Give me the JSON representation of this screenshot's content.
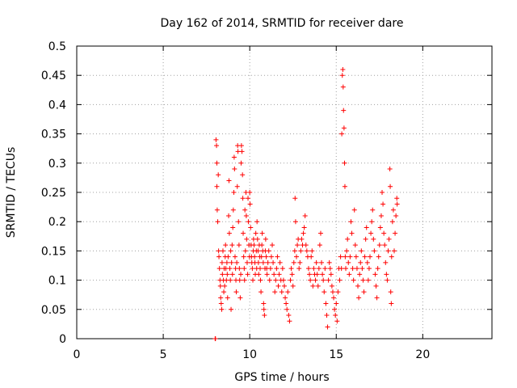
{
  "chart_data": {
    "type": "scatter",
    "title": "Day 162 of 2014, SRMTID for receiver dare",
    "xlabel": "GPS time / hours",
    "ylabel": "SRMTID / TECUs",
    "xlim": [
      0,
      24
    ],
    "ylim": [
      0,
      0.5
    ],
    "xticks": [
      0,
      5,
      10,
      15,
      20
    ],
    "xtick_labels": [
      "0",
      "5",
      "10",
      "15",
      "20"
    ],
    "yticks": [
      0,
      0.05,
      0.1,
      0.15,
      0.2,
      0.25,
      0.3,
      0.35,
      0.4,
      0.45,
      0.5
    ],
    "ytick_labels": [
      "0",
      "0.05",
      "0.1",
      "0.15",
      "0.2",
      "0.25",
      "0.3",
      "0.35",
      "0.4",
      "0.45",
      "0.5"
    ],
    "grid": true,
    "marker": "plus",
    "color": "#ff0000",
    "series": [
      {
        "name": "SRMTID",
        "points": [
          [
            8.0,
            0.0
          ],
          [
            8.02,
            0.0
          ],
          [
            8.05,
            0.34
          ],
          [
            8.08,
            0.33
          ],
          [
            8.1,
            0.3
          ],
          [
            8.1,
            0.26
          ],
          [
            8.12,
            0.22
          ],
          [
            8.15,
            0.2
          ],
          [
            8.18,
            0.28
          ],
          [
            8.2,
            0.15
          ],
          [
            8.22,
            0.14
          ],
          [
            8.25,
            0.12
          ],
          [
            8.28,
            0.1
          ],
          [
            8.3,
            0.09
          ],
          [
            8.32,
            0.07
          ],
          [
            8.35,
            0.06
          ],
          [
            8.38,
            0.05
          ],
          [
            8.4,
            0.13
          ],
          [
            8.42,
            0.11
          ],
          [
            8.45,
            0.15
          ],
          [
            8.48,
            0.1
          ],
          [
            8.5,
            0.08
          ],
          [
            8.52,
            0.12
          ],
          [
            8.55,
            0.09
          ],
          [
            8.58,
            0.14
          ],
          [
            8.6,
            0.16
          ],
          [
            8.62,
            0.12
          ],
          [
            8.65,
            0.1
          ],
          [
            8.68,
            0.13
          ],
          [
            8.7,
            0.11
          ],
          [
            8.72,
            0.07
          ],
          [
            8.75,
            0.14
          ],
          [
            8.78,
            0.21
          ],
          [
            8.8,
            0.27
          ],
          [
            8.82,
            0.18
          ],
          [
            8.85,
            0.12
          ],
          [
            8.88,
            0.1
          ],
          [
            8.9,
            0.15
          ],
          [
            8.92,
            0.05
          ],
          [
            8.95,
            0.13
          ],
          [
            8.98,
            0.16
          ],
          [
            9.0,
            0.11
          ],
          [
            9.02,
            0.19
          ],
          [
            9.05,
            0.22
          ],
          [
            9.08,
            0.25
          ],
          [
            9.1,
            0.31
          ],
          [
            9.12,
            0.29
          ],
          [
            9.15,
            0.14
          ],
          [
            9.18,
            0.12
          ],
          [
            9.2,
            0.1
          ],
          [
            9.22,
            0.08
          ],
          [
            9.25,
            0.13
          ],
          [
            9.28,
            0.26
          ],
          [
            9.3,
            0.33
          ],
          [
            9.32,
            0.32
          ],
          [
            9.35,
            0.2
          ],
          [
            9.38,
            0.16
          ],
          [
            9.4,
            0.12
          ],
          [
            9.42,
            0.1
          ],
          [
            9.45,
            0.07
          ],
          [
            9.48,
            0.11
          ],
          [
            9.5,
            0.3
          ],
          [
            9.52,
            0.33
          ],
          [
            9.55,
            0.32
          ],
          [
            9.58,
            0.28
          ],
          [
            9.6,
            0.24
          ],
          [
            9.62,
            0.18
          ],
          [
            9.65,
            0.14
          ],
          [
            9.68,
            0.12
          ],
          [
            9.7,
            0.1
          ],
          [
            9.72,
            0.22
          ],
          [
            9.75,
            0.15
          ],
          [
            9.78,
            0.25
          ],
          [
            9.8,
            0.21
          ],
          [
            9.82,
            0.17
          ],
          [
            9.85,
            0.13
          ],
          [
            9.88,
            0.11
          ],
          [
            9.9,
            0.24
          ],
          [
            9.92,
            0.2
          ],
          [
            9.95,
            0.16
          ],
          [
            9.98,
            0.14
          ],
          [
            10.0,
            0.25
          ],
          [
            10.02,
            0.23
          ],
          [
            10.05,
            0.19
          ],
          [
            10.08,
            0.16
          ],
          [
            10.1,
            0.14
          ],
          [
            10.12,
            0.13
          ],
          [
            10.15,
            0.12
          ],
          [
            10.18,
            0.1
          ],
          [
            10.2,
            0.15
          ],
          [
            10.22,
            0.17
          ],
          [
            10.25,
            0.16
          ],
          [
            10.28,
            0.14
          ],
          [
            10.3,
            0.13
          ],
          [
            10.32,
            0.11
          ],
          [
            10.35,
            0.18
          ],
          [
            10.38,
            0.15
          ],
          [
            10.4,
            0.12
          ],
          [
            10.42,
            0.2
          ],
          [
            10.45,
            0.17
          ],
          [
            10.48,
            0.15
          ],
          [
            10.5,
            0.13
          ],
          [
            10.52,
            0.11
          ],
          [
            10.55,
            0.16
          ],
          [
            10.58,
            0.14
          ],
          [
            10.6,
            0.12
          ],
          [
            10.62,
            0.1
          ],
          [
            10.65,
            0.08
          ],
          [
            10.68,
            0.14
          ],
          [
            10.7,
            0.16
          ],
          [
            10.72,
            0.18
          ],
          [
            10.75,
            0.15
          ],
          [
            10.78,
            0.13
          ],
          [
            10.8,
            0.06
          ],
          [
            10.82,
            0.05
          ],
          [
            10.85,
            0.04
          ],
          [
            10.88,
            0.12
          ],
          [
            10.9,
            0.15
          ],
          [
            10.92,
            0.17
          ],
          [
            10.95,
            0.14
          ],
          [
            10.98,
            0.12
          ],
          [
            11.0,
            0.11
          ],
          [
            11.05,
            0.13
          ],
          [
            11.1,
            0.15
          ],
          [
            11.15,
            0.1
          ],
          [
            11.2,
            0.12
          ],
          [
            11.25,
            0.14
          ],
          [
            11.3,
            0.16
          ],
          [
            11.35,
            0.13
          ],
          [
            11.4,
            0.11
          ],
          [
            11.45,
            0.08
          ],
          [
            11.5,
            0.1
          ],
          [
            11.55,
            0.12
          ],
          [
            11.6,
            0.14
          ],
          [
            11.65,
            0.09
          ],
          [
            11.7,
            0.11
          ],
          [
            11.75,
            0.13
          ],
          [
            11.8,
            0.1
          ],
          [
            11.85,
            0.08
          ],
          [
            11.9,
            0.12
          ],
          [
            11.95,
            0.1
          ],
          [
            12.0,
            0.09
          ],
          [
            12.05,
            0.07
          ],
          [
            12.1,
            0.06
          ],
          [
            12.15,
            0.05
          ],
          [
            12.2,
            0.08
          ],
          [
            12.25,
            0.04
          ],
          [
            12.3,
            0.03
          ],
          [
            12.35,
            0.1
          ],
          [
            12.4,
            0.12
          ],
          [
            12.45,
            0.11
          ],
          [
            12.5,
            0.09
          ],
          [
            12.55,
            0.13
          ],
          [
            12.6,
            0.15
          ],
          [
            12.62,
            0.24
          ],
          [
            12.65,
            0.2
          ],
          [
            12.7,
            0.14
          ],
          [
            12.75,
            0.16
          ],
          [
            12.8,
            0.17
          ],
          [
            12.85,
            0.12
          ],
          [
            12.9,
            0.13
          ],
          [
            12.95,
            0.15
          ],
          [
            13.0,
            0.17
          ],
          [
            13.05,
            0.16
          ],
          [
            13.1,
            0.18
          ],
          [
            13.15,
            0.19
          ],
          [
            13.2,
            0.21
          ],
          [
            13.25,
            0.16
          ],
          [
            13.3,
            0.15
          ],
          [
            13.35,
            0.14
          ],
          [
            13.4,
            0.12
          ],
          [
            13.45,
            0.11
          ],
          [
            13.5,
            0.1
          ],
          [
            13.55,
            0.14
          ],
          [
            13.6,
            0.15
          ],
          [
            13.65,
            0.09
          ],
          [
            13.7,
            0.12
          ],
          [
            13.75,
            0.11
          ],
          [
            13.8,
            0.1
          ],
          [
            13.85,
            0.13
          ],
          [
            13.9,
            0.11
          ],
          [
            13.95,
            0.09
          ],
          [
            14.0,
            0.12
          ],
          [
            14.05,
            0.16
          ],
          [
            14.1,
            0.18
          ],
          [
            14.15,
            0.13
          ],
          [
            14.2,
            0.11
          ],
          [
            14.25,
            0.1
          ],
          [
            14.3,
            0.08
          ],
          [
            14.35,
            0.12
          ],
          [
            14.4,
            0.06
          ],
          [
            14.45,
            0.04
          ],
          [
            14.5,
            0.02
          ],
          [
            14.55,
            0.1
          ],
          [
            14.6,
            0.13
          ],
          [
            14.65,
            0.12
          ],
          [
            14.7,
            0.11
          ],
          [
            14.75,
            0.09
          ],
          [
            14.8,
            0.08
          ],
          [
            14.85,
            0.07
          ],
          [
            14.9,
            0.05
          ],
          [
            14.95,
            0.04
          ],
          [
            15.0,
            0.06
          ],
          [
            15.05,
            0.03
          ],
          [
            15.1,
            0.08
          ],
          [
            15.15,
            0.12
          ],
          [
            15.2,
            0.1
          ],
          [
            15.25,
            0.14
          ],
          [
            15.3,
            0.12
          ],
          [
            15.32,
            0.35
          ],
          [
            15.35,
            0.45
          ],
          [
            15.38,
            0.46
          ],
          [
            15.4,
            0.43
          ],
          [
            15.42,
            0.39
          ],
          [
            15.45,
            0.36
          ],
          [
            15.48,
            0.3
          ],
          [
            15.5,
            0.26
          ],
          [
            15.52,
            0.14
          ],
          [
            15.55,
            0.12
          ],
          [
            15.6,
            0.15
          ],
          [
            15.65,
            0.17
          ],
          [
            15.7,
            0.13
          ],
          [
            15.75,
            0.11
          ],
          [
            15.8,
            0.14
          ],
          [
            15.85,
            0.2
          ],
          [
            15.9,
            0.18
          ],
          [
            15.95,
            0.12
          ],
          [
            16.0,
            0.1
          ],
          [
            16.05,
            0.22
          ],
          [
            16.1,
            0.16
          ],
          [
            16.15,
            0.14
          ],
          [
            16.2,
            0.12
          ],
          [
            16.25,
            0.09
          ],
          [
            16.3,
            0.07
          ],
          [
            16.35,
            0.11
          ],
          [
            16.4,
            0.13
          ],
          [
            16.45,
            0.15
          ],
          [
            16.5,
            0.12
          ],
          [
            16.55,
            0.1
          ],
          [
            16.6,
            0.08
          ],
          [
            16.65,
            0.14
          ],
          [
            16.7,
            0.17
          ],
          [
            16.75,
            0.19
          ],
          [
            16.8,
            0.13
          ],
          [
            16.85,
            0.1
          ],
          [
            16.9,
            0.12
          ],
          [
            16.95,
            0.14
          ],
          [
            17.0,
            0.18
          ],
          [
            17.05,
            0.2
          ],
          [
            17.1,
            0.22
          ],
          [
            17.15,
            0.17
          ],
          [
            17.2,
            0.15
          ],
          [
            17.25,
            0.11
          ],
          [
            17.3,
            0.09
          ],
          [
            17.35,
            0.07
          ],
          [
            17.4,
            0.12
          ],
          [
            17.45,
            0.14
          ],
          [
            17.5,
            0.16
          ],
          [
            17.55,
            0.19
          ],
          [
            17.6,
            0.21
          ],
          [
            17.65,
            0.25
          ],
          [
            17.7,
            0.23
          ],
          [
            17.75,
            0.18
          ],
          [
            17.8,
            0.16
          ],
          [
            17.85,
            0.13
          ],
          [
            17.9,
            0.11
          ],
          [
            17.95,
            0.1
          ],
          [
            18.0,
            0.15
          ],
          [
            18.05,
            0.17
          ],
          [
            18.1,
            0.29
          ],
          [
            18.12,
            0.26
          ],
          [
            18.15,
            0.08
          ],
          [
            18.18,
            0.06
          ],
          [
            18.2,
            0.14
          ],
          [
            18.25,
            0.2
          ],
          [
            18.3,
            0.22
          ],
          [
            18.35,
            0.15
          ],
          [
            18.4,
            0.18
          ],
          [
            18.45,
            0.21
          ],
          [
            18.5,
            0.24
          ],
          [
            18.52,
            0.23
          ]
        ]
      }
    ]
  }
}
